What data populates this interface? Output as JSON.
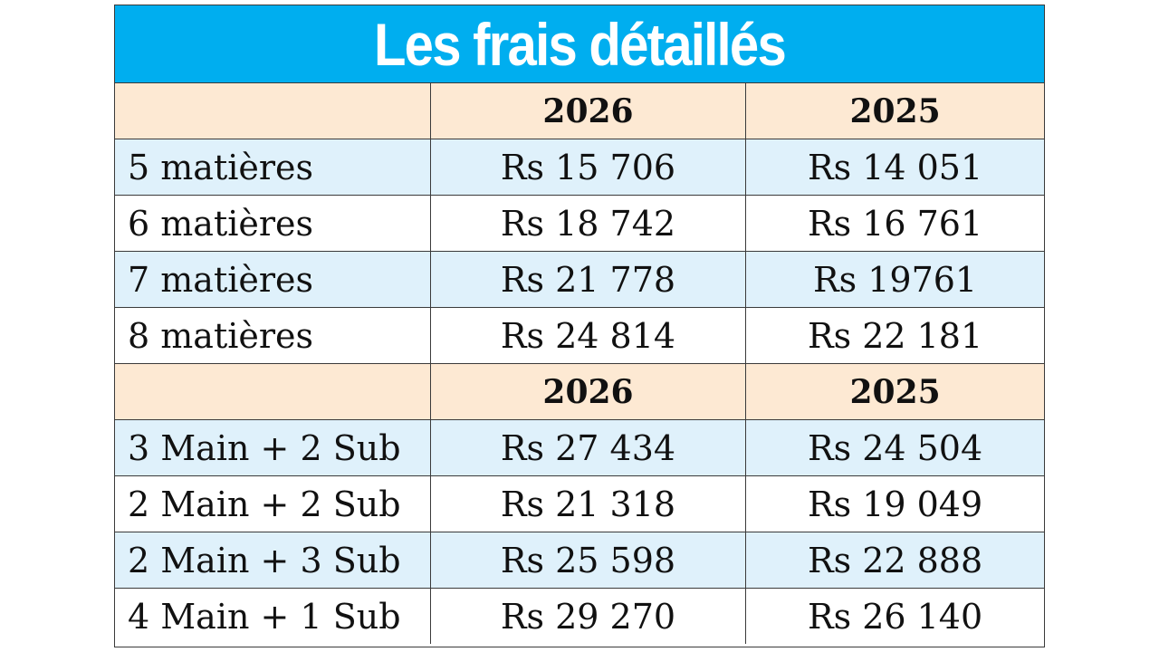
{
  "title": "Les frais détaillés",
  "colors": {
    "title_bg": "#00aeef",
    "header_bg": "#fde9d3",
    "alt_row_bg": "#dff1fb"
  },
  "section1": {
    "headers": [
      "",
      "2026",
      "2025"
    ],
    "rows": [
      {
        "label": "5 matières",
        "y2026": "Rs 15 706",
        "y2025": "Rs 14 051"
      },
      {
        "label": "6 matières",
        "y2026": "Rs 18 742",
        "y2025": "Rs 16 761"
      },
      {
        "label": "7 matières",
        "y2026": "Rs 21 778",
        "y2025": "Rs 19761"
      },
      {
        "label": "8 matières",
        "y2026": "Rs 24 814",
        "y2025": "Rs 22 181"
      }
    ]
  },
  "section2": {
    "headers": [
      "",
      "2026",
      "2025"
    ],
    "rows": [
      {
        "label": "3 Main + 2 Sub",
        "y2026": "Rs 27 434",
        "y2025": "Rs 24 504"
      },
      {
        "label": "2 Main + 2 Sub",
        "y2026": "Rs 21 318",
        "y2025": "Rs 19 049"
      },
      {
        "label": "2 Main + 3 Sub",
        "y2026": "Rs 25 598",
        "y2025": "Rs 22 888"
      },
      {
        "label": "4 Main + 1 Sub",
        "y2026": "Rs 29 270",
        "y2025": "Rs 26 140"
      }
    ]
  }
}
